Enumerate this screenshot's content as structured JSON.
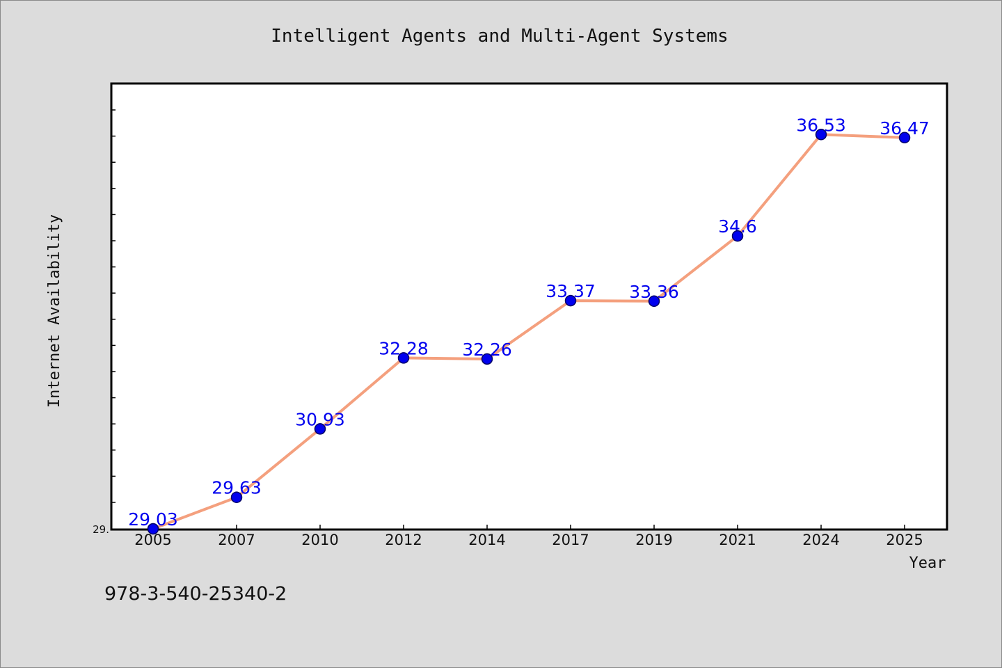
{
  "chart_data": {
    "type": "line",
    "title": "Intelligent Agents and Multi-Agent Systems",
    "xlabel": "Year",
    "ylabel": "Internet Availability",
    "categories": [
      "2005",
      "2007",
      "2010",
      "2012",
      "2014",
      "2017",
      "2019",
      "2021",
      "2024",
      "2025"
    ],
    "series": [
      {
        "values": [
          29.03,
          29.63,
          30.93,
          32.28,
          32.26,
          33.37,
          33.36,
          34.6,
          36.53,
          36.47
        ]
      }
    ],
    "data_labels": [
      "29.03",
      "29.63",
      "30.93",
      "32.28",
      "32.26",
      "33.37",
      "33.36",
      "34.6",
      "36.53",
      "36.47"
    ],
    "ylim": [
      29.03,
      37.5
    ],
    "y_tick_label": "29.",
    "grid": false,
    "legend": "none",
    "colors": {
      "line": "#f4a07e",
      "marker": "#0000ee",
      "marker_edge": "#000066",
      "data_label": "#0000ee",
      "plot_bg": "#ffffff",
      "page_bg": "#dcdcdc"
    }
  },
  "footer": {
    "text": "978-3-540-25340-2"
  }
}
